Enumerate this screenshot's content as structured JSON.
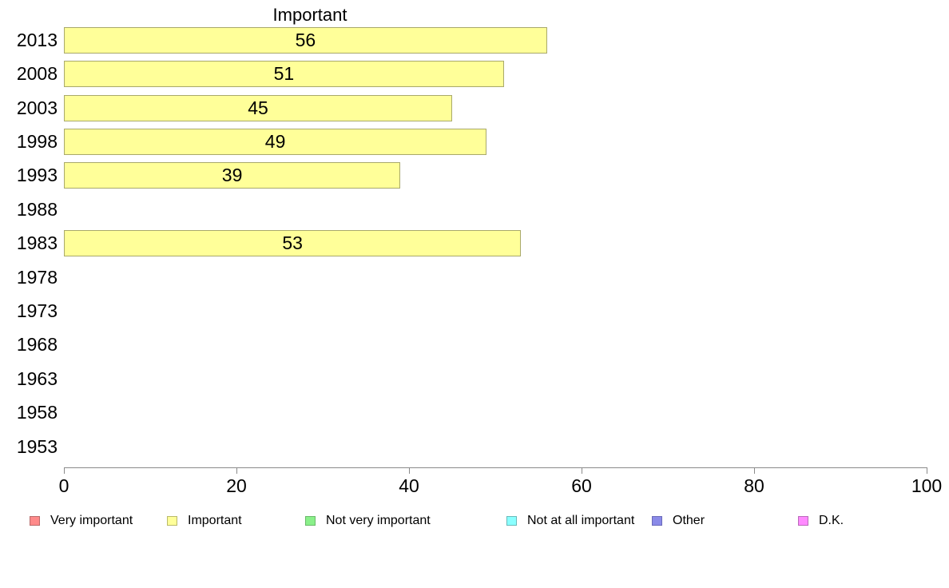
{
  "chart_data": {
    "type": "bar",
    "orientation": "horizontal",
    "title": "Important",
    "categories": [
      "2013",
      "2008",
      "2003",
      "1998",
      "1993",
      "1988",
      "1983",
      "1978",
      "1973",
      "1968",
      "1963",
      "1958",
      "1953"
    ],
    "values": [
      56,
      51,
      45,
      49,
      39,
      null,
      53,
      null,
      null,
      null,
      null,
      null,
      null
    ],
    "xlim": [
      0,
      100
    ],
    "x_ticks": [
      0,
      20,
      40,
      60,
      80,
      100
    ],
    "x_tick_labels": [
      "0",
      "20",
      "40",
      "60",
      "80",
      "100"
    ],
    "grid": false,
    "bar_fill_color": "#FFFF99",
    "bar_border_color": "#A9A96B",
    "axis_color": "#8A8A8A",
    "legend_position": "bottom",
    "legend": [
      {
        "label": "Very important",
        "color": "#FF8A8A",
        "border": "#B96A6A"
      },
      {
        "label": "Important",
        "color": "#FFFF99",
        "border": "#B9B96A"
      },
      {
        "label": "Not very important",
        "color": "#8AF08A",
        "border": "#6AB96A"
      },
      {
        "label": "Not at all important",
        "color": "#8AFFFF",
        "border": "#6AB9B9"
      },
      {
        "label": "Other",
        "color": "#8A8AE8",
        "border": "#6A6AB9"
      },
      {
        "label": "D.K.",
        "color": "#FF8AFF",
        "border": "#B96AB9"
      }
    ]
  }
}
